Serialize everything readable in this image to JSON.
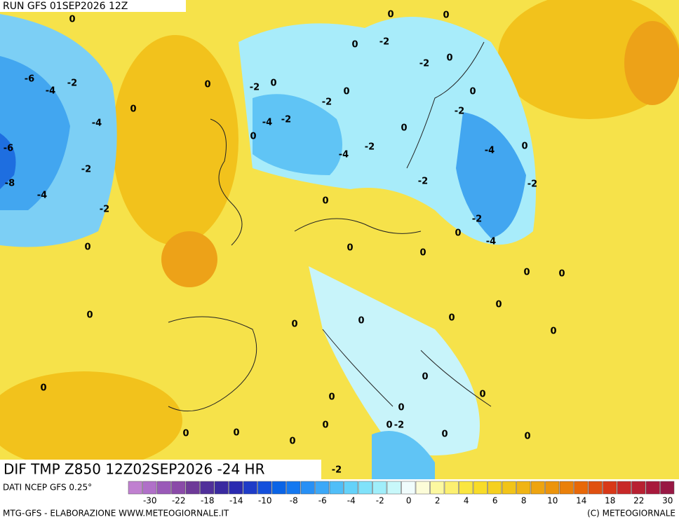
{
  "header": {
    "run": "RUN GFS 01SEP2026 12Z"
  },
  "map": {
    "field": "DIF TMP Z850 12Z02SEP2026 -24 HR",
    "contour_labels": [
      0,
      0,
      0,
      -2,
      0,
      -2,
      0,
      -6,
      -4,
      -2,
      0,
      -2,
      0,
      0,
      -2,
      0,
      0,
      -2,
      -4,
      -4,
      -2,
      0,
      0,
      -6,
      -4,
      -2,
      -4,
      0,
      -2,
      -8,
      -4,
      -2,
      -2,
      -2,
      0,
      -2,
      0,
      -4,
      0,
      0,
      0,
      0,
      0,
      0,
      0,
      0,
      0,
      0,
      0,
      0,
      0,
      0,
      0,
      0,
      0,
      0,
      -2,
      0,
      0,
      0,
      0,
      0,
      -2
    ]
  },
  "legend": {
    "source": "DATI NCEP GFS 0.25°",
    "colors": [
      "#c080d0",
      "#b070c8",
      "#9a5ab8",
      "#8a4aa8",
      "#6e3a98",
      "#50309a",
      "#3a2aa0",
      "#2a2ab0",
      "#1e3cc8",
      "#1450dc",
      "#0a64e6",
      "#1478f0",
      "#2890f5",
      "#3ca8f8",
      "#50bef8",
      "#64d2fa",
      "#80e2fa",
      "#a0eefa",
      "#c8f8fa",
      "#f0fcfc",
      "#fcfcd8",
      "#fcf8a0",
      "#fcf070",
      "#fae640",
      "#f8dc28",
      "#f5d020",
      "#f2c418",
      "#f0b414",
      "#eea410",
      "#ec940c",
      "#ea800a",
      "#e86808",
      "#e05010",
      "#d83818",
      "#c82828",
      "#b82032",
      "#a8183c",
      "#981844"
    ],
    "ticks": [
      -30,
      -22,
      -18,
      -14,
      -10,
      -8,
      -6,
      -4,
      -2,
      0,
      2,
      4,
      6,
      8,
      10,
      14,
      18,
      22,
      30
    ]
  },
  "footer": {
    "left": "MTG-GFS - ELABORAZIONE WWW.METEOGIORNALE.IT",
    "right": "(C) METEOGIORNALE"
  }
}
